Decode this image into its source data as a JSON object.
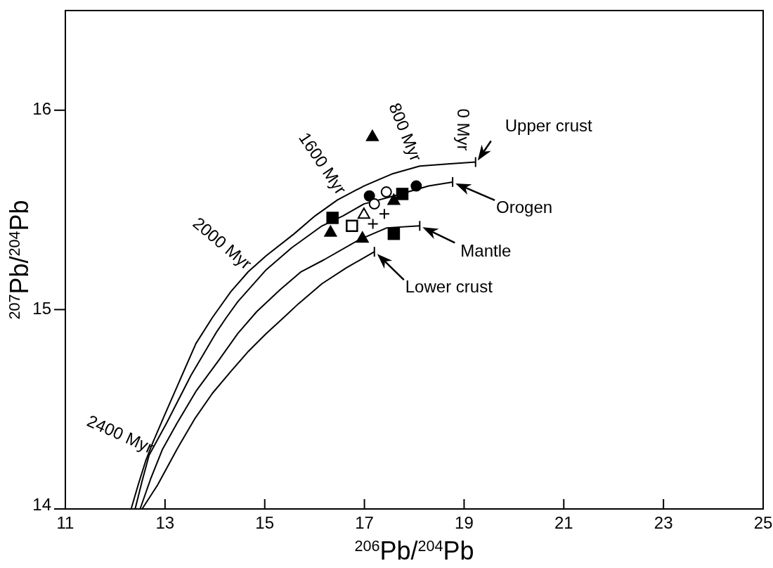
{
  "chart_data": {
    "type": "line",
    "xlabel": "$^{206}$Pb/$^{204}$Pb",
    "ylabel": "$^{207}$Pb/$^{204}$Pb",
    "xlim": [
      11,
      25
    ],
    "ylim": [
      14,
      16.5
    ],
    "xticks": [
      11,
      13,
      15,
      17,
      19,
      21,
      23,
      25
    ],
    "yticks": [
      14,
      15,
      16
    ],
    "grid": false,
    "line_style": "solid",
    "series": [
      {
        "color": "#000000",
        "marker": "none",
        "x": [
          12.32,
          12.46,
          12.61,
          12.75,
          12.99,
          13.27,
          13.62,
          13.95,
          14.32,
          14.67,
          15.03,
          15.59,
          16.01,
          16.46,
          16.99,
          17.55,
          18.11,
          18.67,
          19.23
        ],
        "values": [
          14.0,
          14.12,
          14.24,
          14.33,
          14.47,
          14.63,
          14.83,
          14.96,
          15.09,
          15.19,
          15.27,
          15.38,
          15.47,
          15.55,
          15.62,
          15.68,
          15.72,
          15.73,
          15.74
        ]
      },
      {
        "color": "#000000",
        "marker": "none",
        "x": [
          12.4,
          12.54,
          12.68,
          13.03,
          13.52,
          14.04,
          14.23,
          14.46,
          15.03,
          15.54,
          16.15,
          16.57,
          16.99,
          17.59,
          18.29,
          18.77
        ],
        "values": [
          14.0,
          14.14,
          14.27,
          14.43,
          14.67,
          14.89,
          14.96,
          15.04,
          15.2,
          15.31,
          15.42,
          15.47,
          15.53,
          15.57,
          15.62,
          15.64
        ]
      },
      {
        "color": "#000000",
        "marker": "none",
        "x": [
          12.5,
          12.71,
          12.95,
          13.24,
          13.62,
          14.09,
          14.46,
          14.84,
          15.31,
          15.73,
          16.19,
          16.89,
          17.45,
          18.11
        ],
        "values": [
          14.0,
          14.15,
          14.3,
          14.43,
          14.59,
          14.75,
          14.88,
          14.99,
          15.1,
          15.19,
          15.25,
          15.35,
          15.41,
          15.42
        ]
      },
      {
        "color": "#000000",
        "marker": "none",
        "x": [
          12.54,
          12.85,
          13.24,
          13.59,
          13.95,
          14.32,
          14.67,
          15.03,
          15.38,
          15.68,
          16.15,
          16.64,
          17.2
        ],
        "values": [
          14.0,
          14.12,
          14.3,
          14.45,
          14.58,
          14.69,
          14.79,
          14.88,
          14.96,
          15.03,
          15.13,
          15.21,
          15.29
        ]
      },
      {
        "type": "scatter",
        "color": "#000000",
        "marker": "triangle",
        "x": [
          17.16,
          17.59,
          16.32,
          16.96
        ],
        "values": [
          15.87,
          15.55,
          15.39,
          15.36
        ]
      },
      {
        "type": "scatter",
        "color": "#000000",
        "marker": "circle",
        "x": [
          17.1,
          18.04
        ],
        "values": [
          15.57,
          15.62
        ]
      },
      {
        "type": "scatter",
        "color": "#000000",
        "marker": "square",
        "x": [
          17.76,
          16.36,
          17.59
        ],
        "values": [
          15.58,
          15.46,
          15.38
        ]
      },
      {
        "type": "scatter",
        "color": "#ffffff",
        "marker": "circle",
        "x": [
          17.44,
          17.2
        ],
        "values": [
          15.59,
          15.53
        ]
      },
      {
        "type": "scatter",
        "color": "#ffffff",
        "marker": "triangle",
        "x": [
          16.99
        ],
        "values": [
          15.48
        ]
      },
      {
        "type": "scatter",
        "color": "#ffffff",
        "marker": "square",
        "x": [
          16.75
        ],
        "values": [
          15.42
        ]
      },
      {
        "type": "scatter",
        "color": "#000000",
        "marker": "cross",
        "x": [
          17.4,
          17.17
        ],
        "values": [
          15.48,
          15.43
        ]
      }
    ],
    "annotations": [
      {
        "text": "Upper crust",
        "x": 19.23,
        "y": 15.74
      },
      {
        "text": "Orogen",
        "x": 18.77,
        "y": 15.64
      },
      {
        "text": "Mantle",
        "x": 18.11,
        "y": 15.42
      },
      {
        "text": "Lower crust",
        "x": 17.2,
        "y": 15.29
      },
      {
        "text": "0 Myr",
        "x": 19.23,
        "y": 15.74
      },
      {
        "text": "800 Myr",
        "x": 17.97,
        "y": 15.71
      },
      {
        "text": "1600 Myr",
        "x": 16.46,
        "y": 15.55
      },
      {
        "text": "2000 Myr",
        "x": 14.67,
        "y": 15.19
      },
      {
        "text": "2400 Myr",
        "x": 12.67,
        "y": 14.27
      }
    ]
  }
}
